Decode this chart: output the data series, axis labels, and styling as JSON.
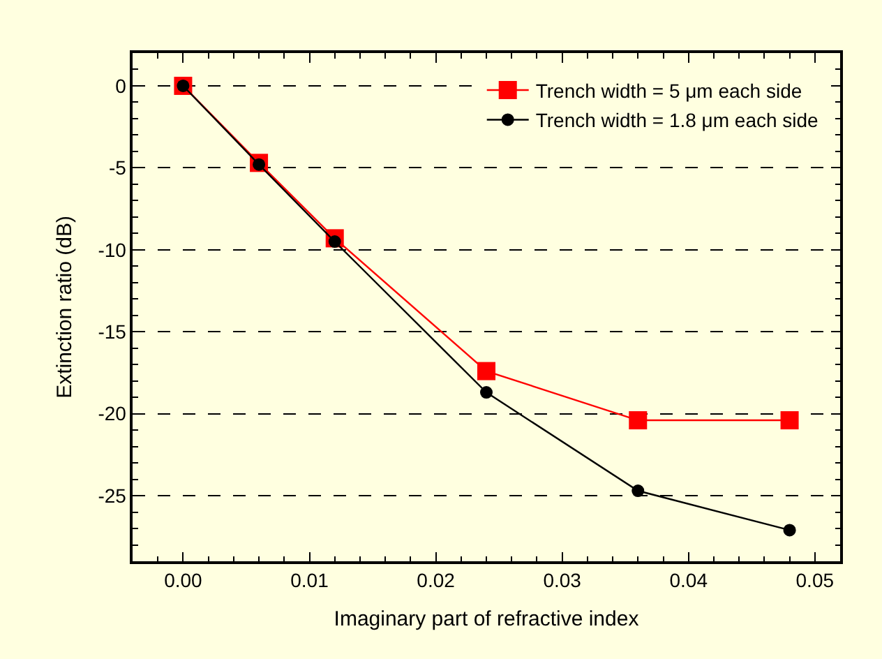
{
  "chart_data": {
    "type": "line",
    "xlabel": "Imaginary part of refractive index",
    "ylabel": "Extinction ratio (dB)",
    "x": [
      0,
      0.006,
      0.012,
      0.024,
      0.036,
      0.048
    ],
    "series": [
      {
        "name": "Trench width = 5 μm each side",
        "color": "#ff0000",
        "marker": "square",
        "values": [
          0,
          -4.7,
          -9.3,
          -17.4,
          -20.4,
          -20.4
        ]
      },
      {
        "name": "Trench width = 1.8 μm each side",
        "color": "#000000",
        "marker": "circle",
        "values": [
          0,
          -4.8,
          -9.5,
          -18.7,
          -24.7,
          -27.1
        ]
      }
    ],
    "xlim": [
      -0.004,
      0.052
    ],
    "xticks": [
      {
        "value": 0,
        "label": "0.00"
      },
      {
        "value": 0.01,
        "label": "0.01"
      },
      {
        "value": 0.02,
        "label": "0.02"
      },
      {
        "value": 0.03,
        "label": "0.03"
      },
      {
        "value": 0.04,
        "label": "0.04"
      },
      {
        "value": 0.05,
        "label": "0.05"
      }
    ],
    "ylim": [
      -29,
      2
    ],
    "yticks": [
      0,
      -5,
      -10,
      -15,
      -20,
      -25
    ],
    "grid": "y",
    "legend": "top right",
    "line_style": "solid"
  }
}
